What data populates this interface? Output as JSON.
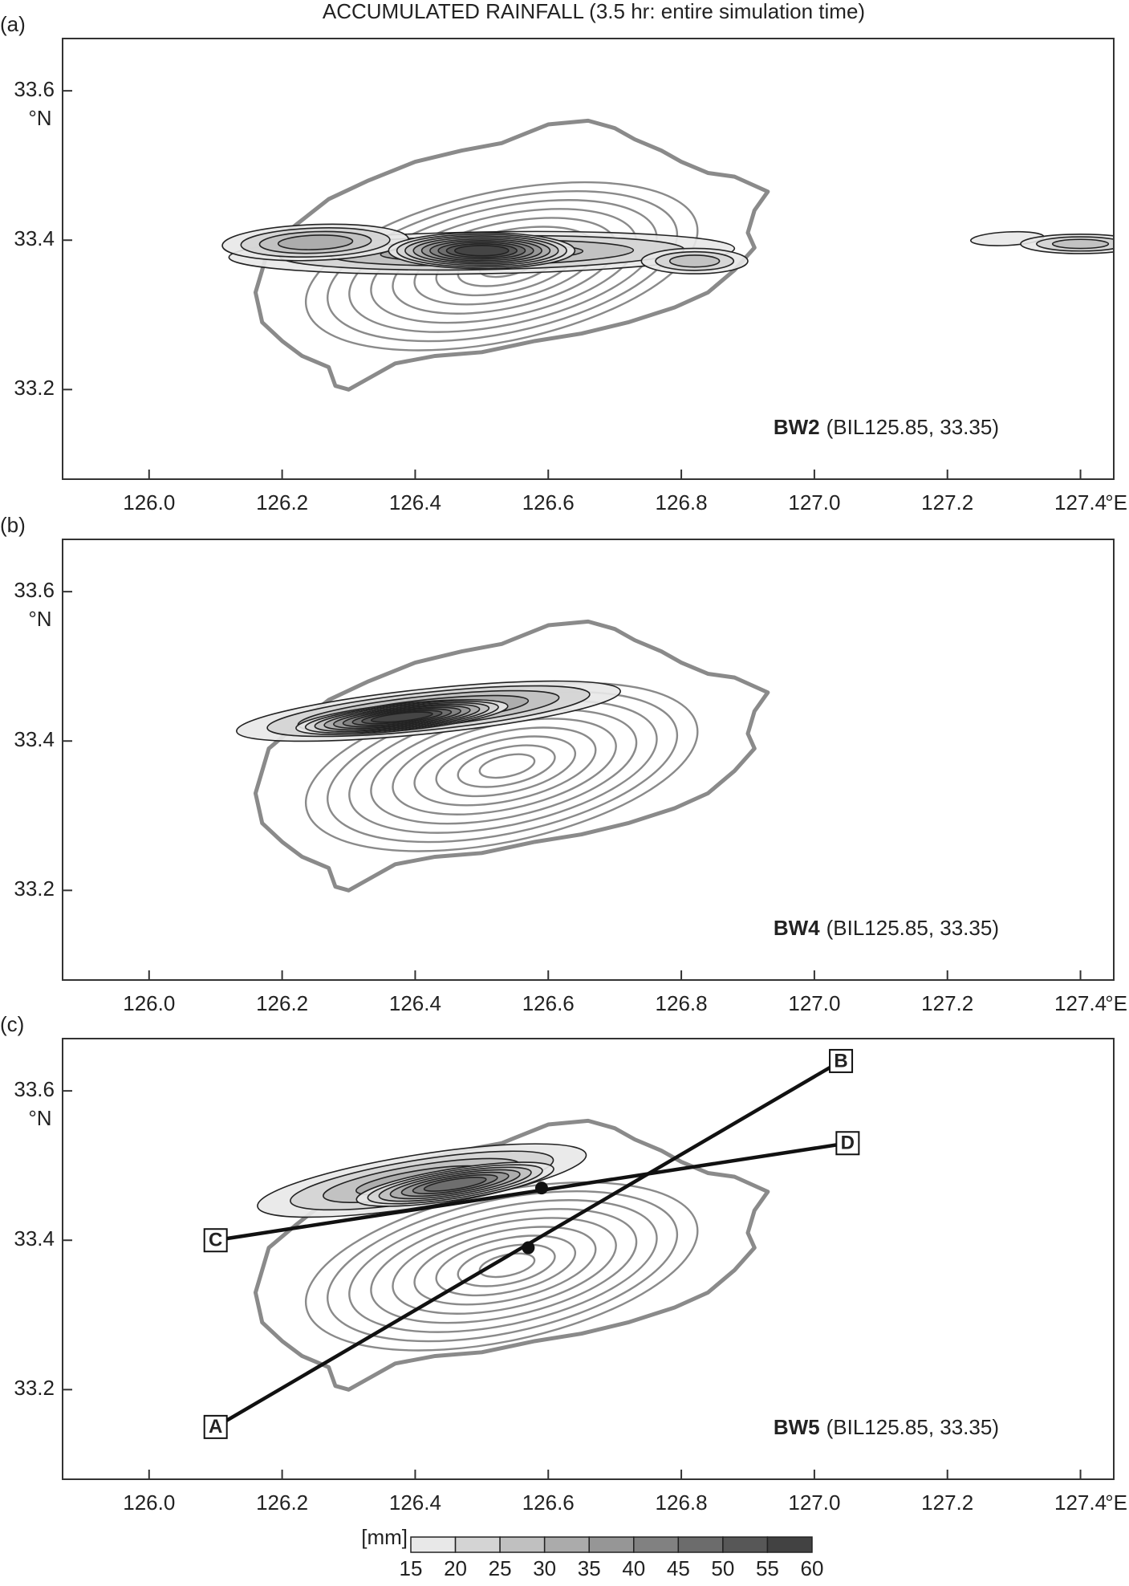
{
  "title": "ACCUMULATED RAINFALL (3.5 hr: entire simulation time)",
  "chart_data": [
    {
      "type": "contour",
      "panel_label": "(a)",
      "annotation_bold": "BW2",
      "annotation": "(BIL125.85, 33.35)",
      "xlim": [
        125.87,
        127.45
      ],
      "ylim": [
        33.08,
        33.67
      ],
      "xticks": [
        {
          "value": 126,
          "label": "126.0"
        },
        126.2,
        126.4,
        126.6,
        126.8,
        {
          "value": 127,
          "label": "127.0"
        },
        127.2,
        127.4
      ],
      "yticks": [
        33.2,
        33.4,
        33.6
      ],
      "xunit": "°E",
      "yunit": "°N"
    },
    {
      "type": "contour",
      "panel_label": "(b)",
      "annotation_bold": "BW4",
      "annotation": "(BIL125.85, 33.35)",
      "xlim": [
        125.87,
        127.45
      ],
      "ylim": [
        33.08,
        33.67
      ],
      "xticks": [
        {
          "value": 126,
          "label": "126.0"
        },
        126.2,
        126.4,
        126.6,
        126.8,
        {
          "value": 127,
          "label": "127.0"
        },
        127.2,
        127.4
      ],
      "yticks": [
        33.2,
        33.4,
        33.6
      ],
      "xunit": "°E",
      "yunit": "°N"
    },
    {
      "type": "contour",
      "panel_label": "(c)",
      "annotation_bold": "BW5",
      "annotation": "(BIL125.85, 33.35)",
      "xlim": [
        125.87,
        127.45
      ],
      "ylim": [
        33.08,
        33.67
      ],
      "xticks": [
        {
          "value": 126,
          "label": "126.0"
        },
        126.2,
        126.4,
        126.6,
        126.8,
        {
          "value": 127,
          "label": "127.0"
        },
        127.2,
        127.4
      ],
      "yticks": [
        33.2,
        33.4,
        33.6
      ],
      "xunit": "°E",
      "yunit": "°N",
      "sections": [
        {
          "from": "A",
          "to": "B",
          "x": [
            126.1,
            127.04
          ],
          "y": [
            33.15,
            33.64
          ]
        },
        {
          "from": "C",
          "to": "D",
          "x": [
            126.1,
            127.05
          ],
          "y": [
            33.4,
            33.53
          ]
        }
      ],
      "points": {
        "x": [
          126.57,
          126.59
        ],
        "y": [
          33.39,
          33.47
        ]
      }
    }
  ],
  "colorbar": {
    "label": "[mm]",
    "levels": [
      15,
      20,
      25,
      30,
      35,
      40,
      45,
      50,
      55,
      60
    ],
    "colors": [
      "#e8e8e8",
      "#d4d4d4",
      "#c0c0c0",
      "#ababab",
      "#969696",
      "#818181",
      "#6c6c6c",
      "#575757",
      "#424242"
    ]
  }
}
